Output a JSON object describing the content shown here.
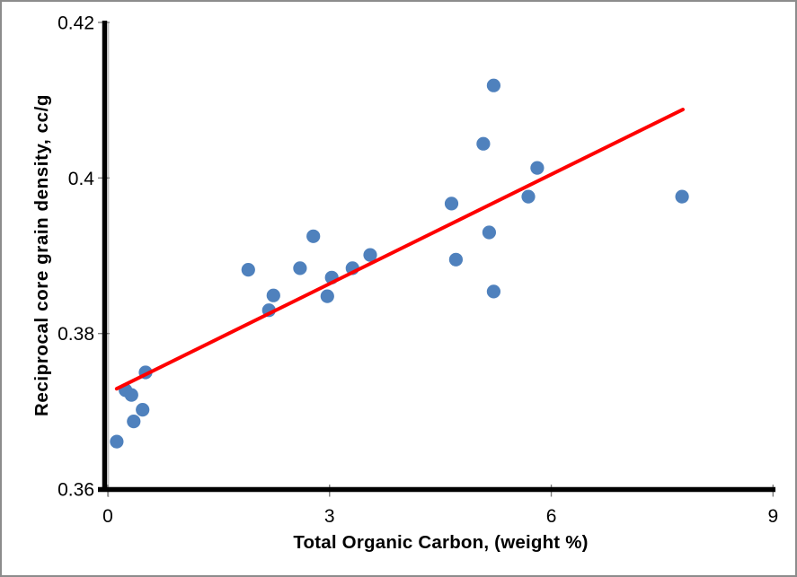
{
  "chart_data": {
    "type": "scatter",
    "xlabel": "Total Organic Carbon, (weight %)",
    "ylabel": "Reciprocal core grain density, cc/g",
    "xlim": [
      0,
      9
    ],
    "ylim": [
      0.36,
      0.42
    ],
    "x_ticks": [
      "0",
      "3",
      "6",
      "9"
    ],
    "x_tick_values": [
      0,
      3,
      6,
      9
    ],
    "y_ticks": [
      "0.36",
      "0.38",
      "0.4",
      "0.42"
    ],
    "y_tick_values": [
      0.36,
      0.38,
      0.4,
      0.42
    ],
    "grid": false,
    "legend": false,
    "marker_color": "#4F81BD",
    "trendline_color": "#FE0000",
    "axis_color": "#000000",
    "tick_color": "#7F7F7F",
    "frame_color": "#8C8C8C",
    "series": [
      {
        "points": [
          [
            0.12,
            0.3661
          ],
          [
            0.24,
            0.3727
          ],
          [
            0.32,
            0.3721
          ],
          [
            0.35,
            0.3687
          ],
          [
            0.47,
            0.3702
          ],
          [
            0.51,
            0.375
          ],
          [
            1.9,
            0.3882
          ],
          [
            2.18,
            0.383
          ],
          [
            2.24,
            0.3849
          ],
          [
            2.6,
            0.3884
          ],
          [
            2.78,
            0.3925
          ],
          [
            2.97,
            0.3848
          ],
          [
            3.03,
            0.3872
          ],
          [
            3.31,
            0.3884
          ],
          [
            3.55,
            0.3901
          ],
          [
            4.65,
            0.3967
          ],
          [
            4.71,
            0.3895
          ],
          [
            5.08,
            0.4044
          ],
          [
            5.16,
            0.393
          ],
          [
            5.22,
            0.4119
          ],
          [
            5.22,
            0.3854
          ],
          [
            5.69,
            0.3976
          ],
          [
            5.81,
            0.4013
          ],
          [
            7.77,
            0.3976
          ]
        ]
      }
    ],
    "trendline": {
      "x1": 0.12,
      "y1": 0.3729,
      "x2": 7.78,
      "y2": 0.4088
    }
  }
}
